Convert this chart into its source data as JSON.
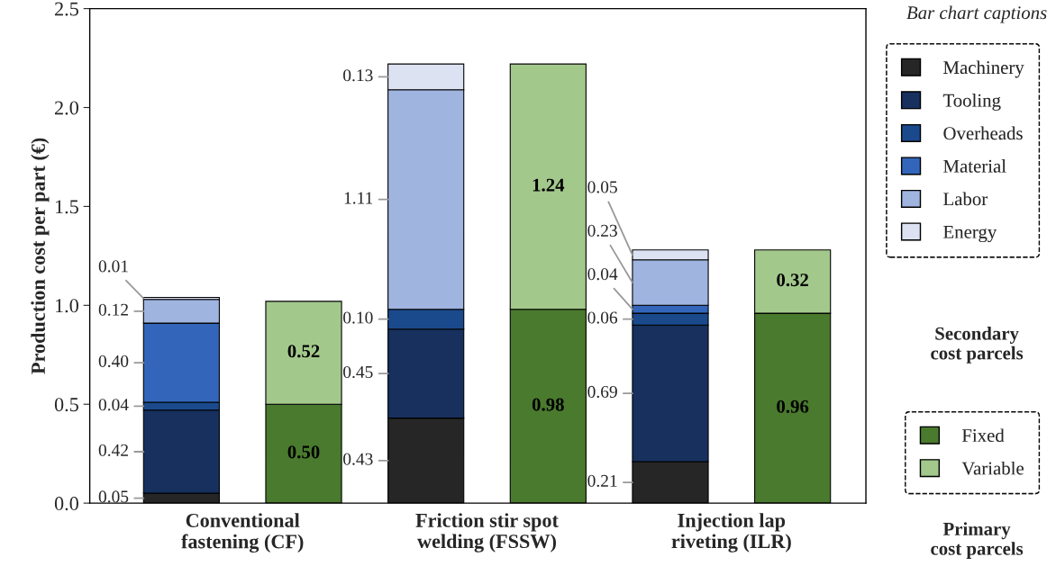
{
  "chart_data": {
    "type": "bar",
    "stacked": true,
    "ylabel": "Production cost per part (€)",
    "categories": [
      "Conventional\nfastening (CF)",
      null,
      "Friction stir spot\nwelding (FSSW)",
      null,
      "Injection lap\nriveting (ILR)",
      null
    ],
    "series": [
      {
        "name": "Machinery",
        "color": "#262626",
        "values": [
          0.05,
          null,
          0.43,
          null,
          0.21,
          null
        ],
        "value_labels": [
          "0.05",
          null,
          "0.43",
          null,
          "0.21",
          null
        ]
      },
      {
        "name": "Tooling",
        "color": "#17305e",
        "values": [
          0.42,
          null,
          0.45,
          null,
          0.69,
          null
        ],
        "value_labels": [
          "0.42",
          null,
          "0.45",
          null,
          "0.69",
          null
        ]
      },
      {
        "name": "Overheads",
        "color": "#1a4a8c",
        "values": [
          0.04,
          null,
          0.1,
          null,
          0.06,
          null
        ],
        "value_labels": [
          "0.04",
          null,
          "0.10",
          null,
          "0.06",
          null
        ]
      },
      {
        "name": "Material",
        "color": "#3366bb",
        "values": [
          0.4,
          null,
          0,
          null,
          0.04,
          null
        ],
        "value_labels": [
          "0.40",
          null,
          null,
          null,
          "0.04",
          null
        ]
      },
      {
        "name": "Labor",
        "color": "#a0b4e0",
        "values": [
          0.12,
          null,
          1.11,
          null,
          0.23,
          null
        ],
        "value_labels": [
          "0.12",
          null,
          "1.11",
          null,
          "0.23",
          null
        ]
      },
      {
        "name": "Energy",
        "color": "#dde2f2",
        "values": [
          0.01,
          null,
          0.13,
          null,
          0.05,
          null
        ],
        "value_labels": [
          "0.01",
          null,
          "0.13",
          null,
          "0.05",
          null
        ]
      },
      {
        "name": "Fixed",
        "color": "#4a7a2e",
        "values": [
          null,
          0.5,
          null,
          0.98,
          null,
          0.96
        ],
        "value_labels": [
          null,
          "0.50",
          null,
          "0.98",
          null,
          "0.96"
        ]
      },
      {
        "name": "Variable",
        "color": "#a3c88c",
        "values": [
          null,
          0.52,
          null,
          1.24,
          null,
          0.32
        ],
        "value_labels": [
          null,
          "0.52",
          null,
          "1.24",
          null,
          "0.32"
        ]
      }
    ],
    "ylim": [
      0,
      2.5
    ],
    "yticks": [
      {
        "value": 0,
        "label": "0.0"
      },
      0.5,
      {
        "value": 1,
        "label": "1.0"
      },
      1.5,
      {
        "value": 2,
        "label": "2.0"
      },
      2.5
    ],
    "grid": false,
    "legend": "right",
    "annotations": [
      "Bar chart captions",
      "Secondary\ncost parcels",
      "Primary\ncost parcels"
    ]
  }
}
